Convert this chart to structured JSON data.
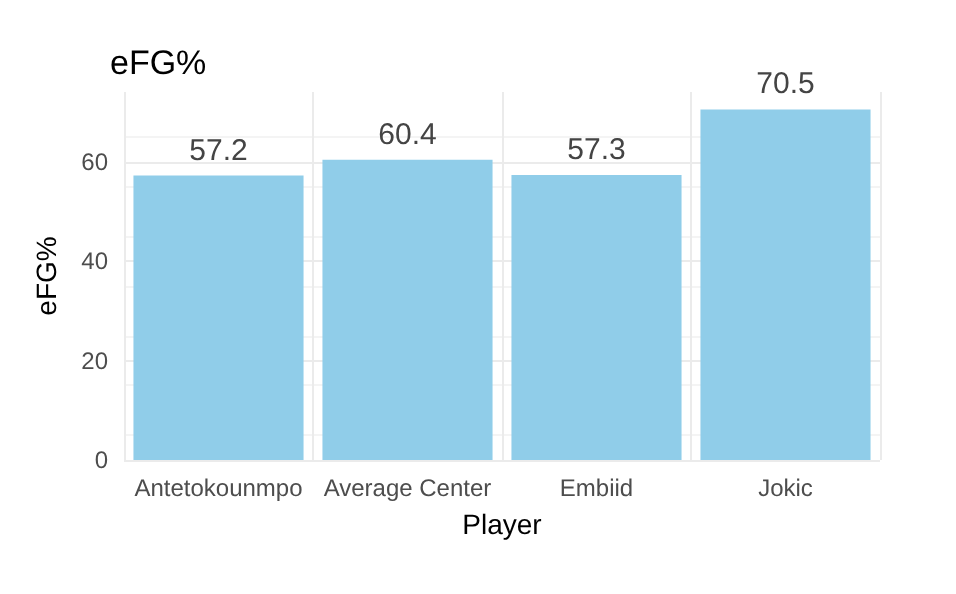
{
  "chart_data": {
    "type": "bar",
    "title": "eFG%",
    "xlabel": "Player",
    "ylabel": "eFG%",
    "categories": [
      "Antetokounmpo",
      "Average Center",
      "Embiid",
      "Jokic"
    ],
    "values": [
      57.2,
      60.4,
      57.3,
      70.5
    ],
    "color": "#90cde9",
    "ylim": [
      0,
      74
    ],
    "yticks": [
      0,
      20,
      40,
      60
    ],
    "grid": true,
    "data_labels": true
  }
}
